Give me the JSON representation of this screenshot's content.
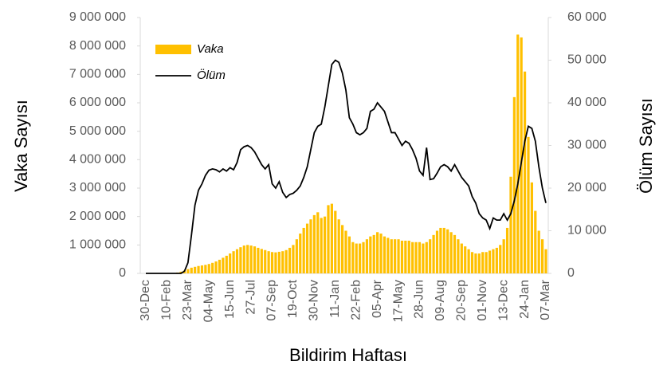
{
  "chart_data": {
    "type": "bar-line",
    "x_label": "Bildirim Haftası",
    "y_label": "Vaka Sayısı",
    "y2_label": "Ölüm Sayısı",
    "legend": "top-left",
    "categories": [
      "30-Dec",
      null,
      null,
      null,
      null,
      null,
      "10-Feb",
      null,
      null,
      null,
      null,
      null,
      "23-Mar",
      null,
      null,
      null,
      null,
      null,
      "04-May",
      null,
      null,
      null,
      null,
      null,
      "15-Jun",
      null,
      null,
      null,
      null,
      null,
      "27-Jul",
      null,
      null,
      null,
      null,
      null,
      "07-Sep",
      null,
      null,
      null,
      null,
      null,
      "19-Oct",
      null,
      null,
      null,
      null,
      null,
      "30-Nov",
      null,
      null,
      null,
      null,
      null,
      "11-Jan",
      null,
      null,
      null,
      null,
      null,
      "22-Feb",
      null,
      null,
      null,
      null,
      null,
      "05-Apr",
      null,
      null,
      null,
      null,
      null,
      "17-May",
      null,
      null,
      null,
      null,
      null,
      "28-Jun",
      null,
      null,
      null,
      null,
      null,
      "09-Aug",
      null,
      null,
      null,
      null,
      null,
      "20-Sep",
      null,
      null,
      null,
      null,
      null,
      "01-Nov",
      null,
      null,
      null,
      null,
      null,
      "13-Dec",
      null,
      null,
      null,
      null,
      null,
      "24-Jan",
      null,
      null,
      null,
      null,
      null,
      "07-Mar"
    ],
    "series": [
      {
        "name": "Vaka",
        "color": "#ffc000",
        "type": "bar",
        "values": [
          0,
          0,
          0,
          0,
          0,
          0,
          0,
          0,
          10000,
          30000,
          60000,
          100000,
          150000,
          200000,
          230000,
          260000,
          280000,
          300000,
          330000,
          370000,
          420000,
          480000,
          550000,
          620000,
          700000,
          780000,
          850000,
          920000,
          980000,
          1000000,
          980000,
          950000,
          900000,
          860000,
          820000,
          780000,
          750000,
          740000,
          760000,
          780000,
          820000,
          900000,
          1000000,
          1200000,
          1400000,
          1600000,
          1750000,
          1900000,
          2050000,
          2150000,
          1950000,
          2000000,
          2400000,
          2450000,
          2200000,
          1900000,
          1700000,
          1500000,
          1300000,
          1100000,
          1050000,
          1050000,
          1100000,
          1200000,
          1300000,
          1350000,
          1450000,
          1400000,
          1300000,
          1250000,
          1200000,
          1200000,
          1200000,
          1150000,
          1150000,
          1150000,
          1100000,
          1100000,
          1100000,
          1050000,
          1100000,
          1200000,
          1350000,
          1500000,
          1600000,
          1600000,
          1550000,
          1450000,
          1350000,
          1200000,
          1050000,
          950000,
          850000,
          750000,
          700000,
          700000,
          750000,
          750000,
          800000,
          850000,
          900000,
          1000000,
          1200000,
          1600000,
          3400000,
          6200000,
          8400000,
          8300000,
          7100000,
          4800000,
          3200000,
          2200000,
          1500000,
          1200000,
          850000
        ]
      },
      {
        "name": "Ölüm",
        "color": "#000000",
        "type": "line",
        "axis": "y2",
        "values": [
          0,
          0,
          0,
          0,
          0,
          0,
          0,
          0,
          0,
          0,
          0,
          500,
          2500,
          9000,
          16000,
          19500,
          21000,
          23000,
          24200,
          24500,
          24300,
          23800,
          24500,
          24000,
          24800,
          24300,
          26000,
          29000,
          29700,
          30000,
          29500,
          28500,
          27000,
          25500,
          24500,
          25500,
          21000,
          20000,
          21500,
          19000,
          17800,
          18500,
          18800,
          19500,
          20500,
          22500,
          25000,
          29000,
          33000,
          34500,
          35000,
          39000,
          44000,
          49000,
          50000,
          49500,
          47000,
          43000,
          36500,
          35000,
          33000,
          32500,
          33000,
          34000,
          38000,
          38500,
          40000,
          39000,
          38000,
          35500,
          33000,
          33000,
          31500,
          30000,
          31000,
          30500,
          29000,
          27000,
          24000,
          23000,
          29500,
          22000,
          22200,
          23500,
          25000,
          25500,
          25000,
          24000,
          25500,
          24000,
          22500,
          21500,
          20500,
          18000,
          16500,
          14000,
          13000,
          12500,
          10500,
          13000,
          12500,
          12500,
          14000,
          12500,
          14000,
          17000,
          21000,
          26000,
          31000,
          34500,
          34000,
          31000,
          25000,
          20000,
          16500
        ]
      }
    ],
    "ylim": [
      0,
      9000000
    ],
    "yticks": [
      0,
      {
        "value": 1000000,
        "label": "1 000 000"
      },
      {
        "value": 2000000,
        "label": "2 000 000"
      },
      {
        "value": 3000000,
        "label": "3 000 000"
      },
      {
        "value": 4000000,
        "label": "4 000 000"
      },
      {
        "value": 5000000,
        "label": "5 000 000"
      },
      {
        "value": 6000000,
        "label": "6 000 000"
      },
      {
        "value": 7000000,
        "label": "7 000 000"
      },
      {
        "value": 8000000,
        "label": "8 000 000"
      },
      {
        "value": 9000000,
        "label": "9 000 000"
      }
    ],
    "y2lim": [
      0,
      60000
    ],
    "y2ticks": [
      0,
      {
        "value": 10000,
        "label": "10 000"
      },
      {
        "value": 20000,
        "label": "20 000"
      },
      {
        "value": 30000,
        "label": "30 000"
      },
      {
        "value": 40000,
        "label": "40 000"
      },
      {
        "value": 50000,
        "label": "50 000"
      },
      {
        "value": 60000,
        "label": "60 000"
      }
    ]
  }
}
